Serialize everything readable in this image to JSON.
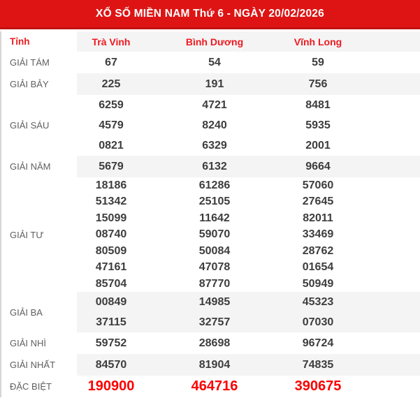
{
  "page": {
    "title_bar": "XỔ SỐ MIỀN NAM Thứ 6 - NGÀY 20/02/2026"
  },
  "table": {
    "province_header": "Tỉnh",
    "provinces": [
      "Trà Vinh",
      "Bình Dương",
      "Vĩnh Long"
    ],
    "rows": [
      {
        "label": "GIẢI TÁM",
        "striped": false,
        "special": false,
        "values": [
          [
            "67"
          ],
          [
            "54"
          ],
          [
            "59"
          ]
        ]
      },
      {
        "label": "GIẢI BẢY",
        "striped": true,
        "special": false,
        "values": [
          [
            "225"
          ],
          [
            "191"
          ],
          [
            "756"
          ]
        ]
      },
      {
        "label": "GIẢI SÁU",
        "striped": false,
        "special": false,
        "values": [
          [
            "6259",
            "4579",
            "0821"
          ],
          [
            "4721",
            "8240",
            "6329"
          ],
          [
            "8481",
            "5935",
            "2001"
          ]
        ]
      },
      {
        "label": "GIẢI NĂM",
        "striped": true,
        "special": false,
        "values": [
          [
            "5679"
          ],
          [
            "6132"
          ],
          [
            "9664"
          ]
        ]
      },
      {
        "label": "GIẢI TƯ",
        "striped": false,
        "special": false,
        "values": [
          [
            "18186",
            "51342",
            "15099",
            "08740",
            "80509",
            "47161",
            "85704"
          ],
          [
            "61286",
            "25105",
            "11642",
            "59070",
            "50084",
            "47078",
            "87770"
          ],
          [
            "57060",
            "27645",
            "82011",
            "33469",
            "28762",
            "01654",
            "50949"
          ]
        ]
      },
      {
        "label": "GIẢI BA",
        "striped": true,
        "special": false,
        "values": [
          [
            "00849",
            "37115"
          ],
          [
            "14985",
            "32757"
          ],
          [
            "45323",
            "07030"
          ]
        ]
      },
      {
        "label": "GIẢI NHÌ",
        "striped": false,
        "special": false,
        "values": [
          [
            "59752"
          ],
          [
            "28698"
          ],
          [
            "96724"
          ]
        ]
      },
      {
        "label": "GIẢI NHẤT",
        "striped": true,
        "special": false,
        "values": [
          [
            "84570"
          ],
          [
            "81904"
          ],
          [
            "74835"
          ]
        ]
      },
      {
        "label": "ĐẶC BIỆT",
        "striped": false,
        "special": true,
        "values": [
          [
            "190900"
          ],
          [
            "464716"
          ],
          [
            "390675"
          ]
        ]
      }
    ]
  },
  "colors": {
    "header_bg": "#de1414",
    "header_border": "#c11212",
    "header_text": "#ffffff",
    "heading_red": "#ef1a20",
    "special_red": "#fb0000",
    "number_text": "#3d3d3d",
    "label_text": "#5f5f5f",
    "stripe_bg": "#f4f4f5",
    "page_bg": "#ffffff",
    "edge_line": "#d5d5d5"
  }
}
